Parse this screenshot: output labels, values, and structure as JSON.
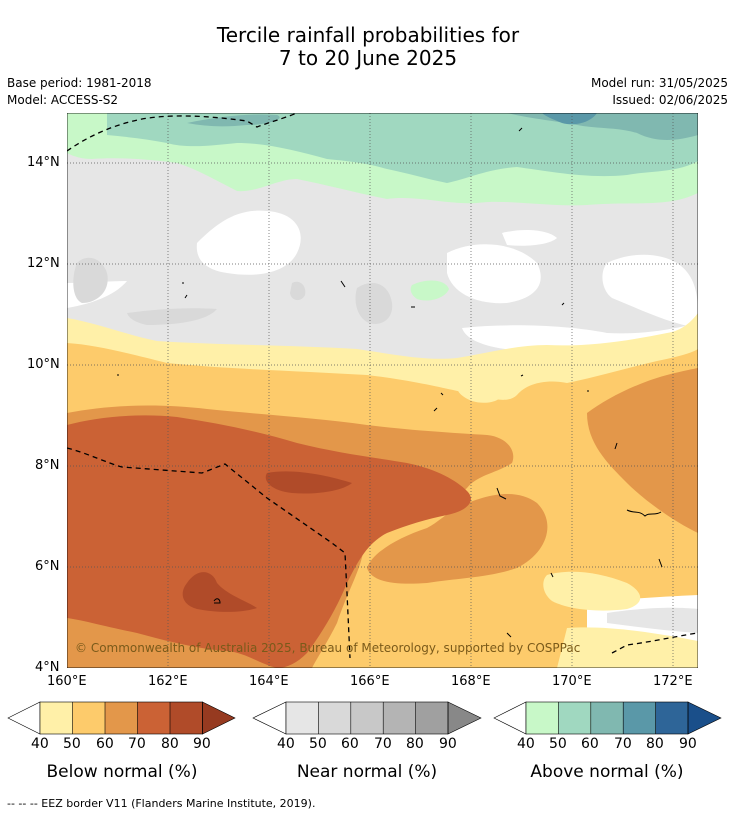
{
  "title": {
    "line1": "Tercile rainfall probabilities for",
    "line2": "7 to 20 June 2025"
  },
  "meta": {
    "base_period": "Base period: 1981-2018",
    "model": "Model: ACCESS-S2",
    "model_run": "Model run: 31/05/2025",
    "issued": "Issued: 02/06/2025"
  },
  "map": {
    "lat_labels": [
      "14°N",
      "12°N",
      "10°N",
      "8°N",
      "6°N",
      "4°N"
    ],
    "lon_labels": [
      "160°E",
      "162°E",
      "164°E",
      "166°E",
      "168°E",
      "170°E",
      "172°E"
    ],
    "copyright": "© Commonwealth of Australia 2025, Bureau of Meteorology, supported by COSPPac"
  },
  "colorbars": [
    {
      "title": "Below normal (%)",
      "ticks": [
        "40",
        "50",
        "60",
        "70",
        "80",
        "90"
      ],
      "colors": [
        "#fff0a8",
        "#fdcb6b",
        "#e3974a",
        "#cb6235",
        "#b04b29",
        "#963a20"
      ]
    },
    {
      "title": "Near normal (%)",
      "ticks": [
        "40",
        "50",
        "60",
        "70",
        "80",
        "90"
      ],
      "colors": [
        "#e6e6e6",
        "#d9d9d9",
        "#c8c8c8",
        "#b4b4b4",
        "#a0a0a0",
        "#888888"
      ]
    },
    {
      "title": "Above normal (%)",
      "ticks": [
        "40",
        "50",
        "60",
        "70",
        "80",
        "90"
      ],
      "colors": [
        "#c8f8c8",
        "#a0d8c0",
        "#80b8b0",
        "#5a98a8",
        "#2e6598",
        "#1a4f8a"
      ]
    }
  ],
  "footnote": "-- -- -- EEZ border V11 (Flanders Marine Institute, 2019)."
}
